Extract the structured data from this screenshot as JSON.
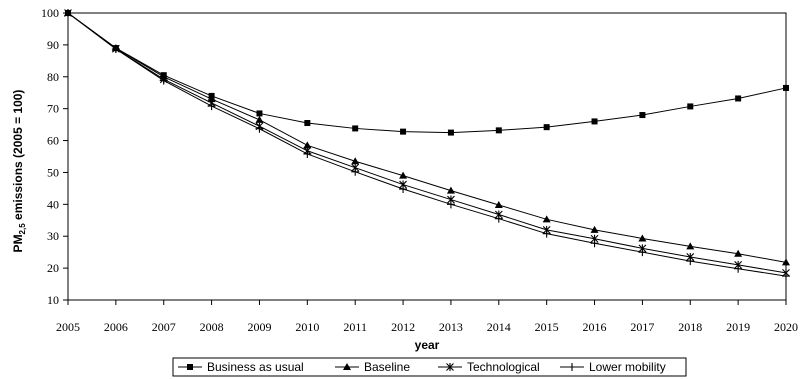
{
  "chart_data": {
    "type": "line",
    "x": [
      2005,
      2006,
      2007,
      2008,
      2009,
      2010,
      2011,
      2012,
      2013,
      2014,
      2015,
      2016,
      2017,
      2018,
      2019,
      2020
    ],
    "xlabel": "year",
    "ylabel": {
      "prefix": "PM",
      "sub": "2,5",
      "suffix": " emissions (2005 = 100)"
    },
    "ylim": [
      10,
      100
    ],
    "yticks": [
      10,
      20,
      30,
      40,
      50,
      60,
      70,
      80,
      90,
      100
    ],
    "grid": false,
    "legend_position": "bottom",
    "series": [
      {
        "name": "Business as usual",
        "marker": "square",
        "values": [
          100,
          89,
          80.5,
          74,
          68.5,
          65.5,
          63.8,
          62.8,
          62.5,
          63.2,
          64.2,
          66,
          68,
          70.7,
          73.2,
          76.5
        ]
      },
      {
        "name": "Baseline",
        "marker": "triangle",
        "values": [
          100,
          89,
          80,
          73,
          66.5,
          58.5,
          53.5,
          49,
          44.3,
          39.8,
          35.3,
          32,
          29.3,
          26.8,
          24.5,
          21.8
        ]
      },
      {
        "name": "Technological",
        "marker": "asterisk",
        "values": [
          100,
          88.8,
          79.2,
          71.8,
          64.5,
          56.8,
          51.5,
          46.2,
          41.5,
          36.8,
          32,
          29.2,
          26.2,
          23.5,
          21,
          18.5
        ]
      },
      {
        "name": "Lower mobility",
        "marker": "plus",
        "values": [
          100,
          88.7,
          78.8,
          70.8,
          63.7,
          55.8,
          50.2,
          44.8,
          40,
          35.5,
          30.8,
          27.8,
          25,
          22.2,
          19.8,
          17.5
        ]
      }
    ]
  }
}
